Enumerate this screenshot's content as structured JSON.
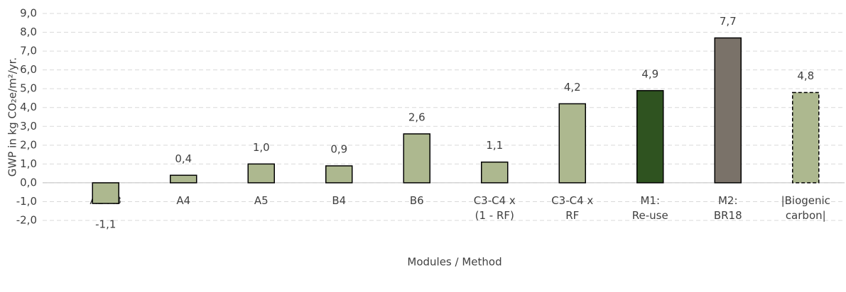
{
  "chart_data": {
    "type": "bar",
    "x_label": "Modules / Method",
    "y_label": "GWP in kg CO₂e/m²/yr.",
    "categories": [
      "A1-A3",
      "A4",
      "A5",
      "B4",
      "B6",
      "C3-C4 x\n(1 - RF)",
      "C3-C4 x\nRF",
      "M1:\nRe-use",
      "M2:\nBR18",
      "|Biogenic\ncarbon|"
    ],
    "values": [
      -1.1,
      0.4,
      1.0,
      0.9,
      2.6,
      1.1,
      4.2,
      4.9,
      7.7,
      4.8
    ],
    "value_labels": [
      "-1,1",
      "0,4",
      "1,0",
      "0,9",
      "2,6",
      "1,1",
      "4,2",
      "4,9",
      "7,7",
      "4,8"
    ],
    "colors": [
      "#adb88f",
      "#adb88f",
      "#adb88f",
      "#adb88f",
      "#adb88f",
      "#adb88f",
      "#adb88f",
      "#2f5320",
      "#7a7269",
      "#adb88f"
    ],
    "border_styles": [
      "solid",
      "solid",
      "solid",
      "solid",
      "solid",
      "solid",
      "solid",
      "solid",
      "solid",
      "dashed"
    ],
    "ylim": [
      -2,
      9
    ],
    "yticks": [
      {
        "value": -2,
        "label": "-2,0"
      },
      {
        "value": -1,
        "label": "-1,0"
      },
      {
        "value": 0,
        "label": "0,0"
      },
      {
        "value": 1,
        "label": "1,0"
      },
      {
        "value": 2,
        "label": "2,0"
      },
      {
        "value": 3,
        "label": "3,0"
      },
      {
        "value": 4,
        "label": "4,0"
      },
      {
        "value": 5,
        "label": "5,0"
      },
      {
        "value": 6,
        "label": "6,0"
      },
      {
        "value": 7,
        "label": "7,0"
      },
      {
        "value": 8,
        "label": "8,0"
      },
      {
        "value": 9,
        "label": "9,0"
      }
    ],
    "grid": true
  }
}
